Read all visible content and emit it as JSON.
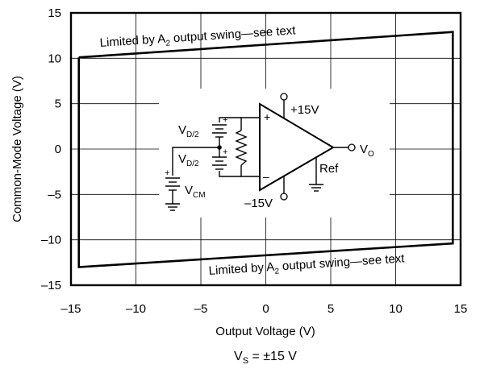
{
  "chart_data": {
    "type": "line",
    "xlabel": "Output Voltage (V)",
    "ylabel": "Common-Mode Voltage (V)",
    "xlim": [
      -15,
      15
    ],
    "ylim": [
      -15,
      15
    ],
    "xticks": [
      "–15",
      "–10",
      "–5",
      "0",
      "5",
      "10",
      "15"
    ],
    "yticks": [
      "15",
      "10",
      "5",
      "0",
      "–5",
      "–10",
      "–15"
    ],
    "grid": true,
    "series": [
      {
        "x": [
          -14.4,
          14.4,
          14.4,
          -14.4,
          -14.4
        ],
        "y": [
          10.1,
          12.9,
          -10.4,
          -13.0,
          10.1
        ]
      }
    ],
    "annotations": {
      "top": {
        "prefix": "Limited by A",
        "sub": "2",
        "suffix": " output swing—see text"
      },
      "bottom": {
        "prefix": "Limited by A",
        "sub": "2",
        "suffix": " output swing—see text"
      }
    },
    "caption": {
      "main": "V",
      "sub": "S",
      "rest": " = ±15 V"
    }
  },
  "circuit": {
    "vpos": "+15V",
    "vneg": "–15V",
    "ref": "Ref",
    "vo_main": "V",
    "vo_sub": "O",
    "vd_main": "V",
    "vd_sub": "D/2",
    "vcm_main": "V",
    "vcm_sub": "CM",
    "plus": "+",
    "minus": "–"
  }
}
